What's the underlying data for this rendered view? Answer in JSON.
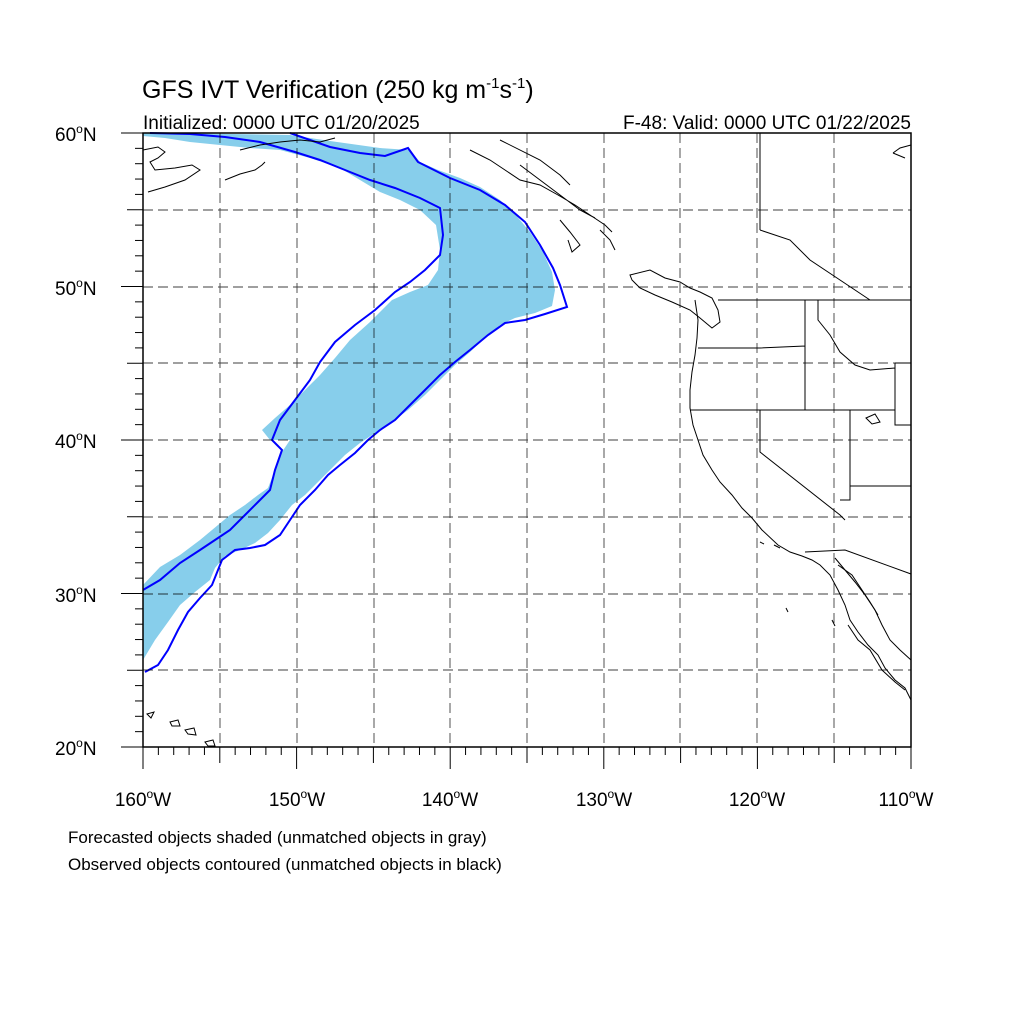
{
  "title": {
    "main": "GFS IVT Verification (250 kg m",
    "exp1": "-1",
    "mid": "s",
    "exp2": "-1",
    "end": ")"
  },
  "subtitle_left": "Initialized: 0000 UTC 01/20/2025",
  "subtitle_right": "F-48: Valid: 0000 UTC 01/22/2025",
  "lat_labels": [
    "60",
    "50",
    "40",
    "30",
    "20"
  ],
  "lon_labels": [
    "160",
    "150",
    "140",
    "130",
    "120",
    "110"
  ],
  "lat_suffix": "N",
  "lon_suffix": "W",
  "degree": "o",
  "footnotes": [
    "Forecasted objects shaded (unmatched objects in gray)",
    "Observed objects contoured (unmatched objects in black)"
  ],
  "map": {
    "lon_range": [
      -160,
      -110
    ],
    "lat_range": [
      20,
      60
    ],
    "grid_lons": [
      -155,
      -150,
      -145,
      -140,
      -135,
      -130,
      -125,
      -120,
      -115
    ],
    "grid_lats": [
      25,
      30,
      35,
      40,
      45,
      50,
      55
    ],
    "colors": {
      "forecast_fill": "#87ceeb",
      "observed_contour": "#0000ff",
      "coastline": "#000000",
      "grid": "#000000"
    }
  }
}
